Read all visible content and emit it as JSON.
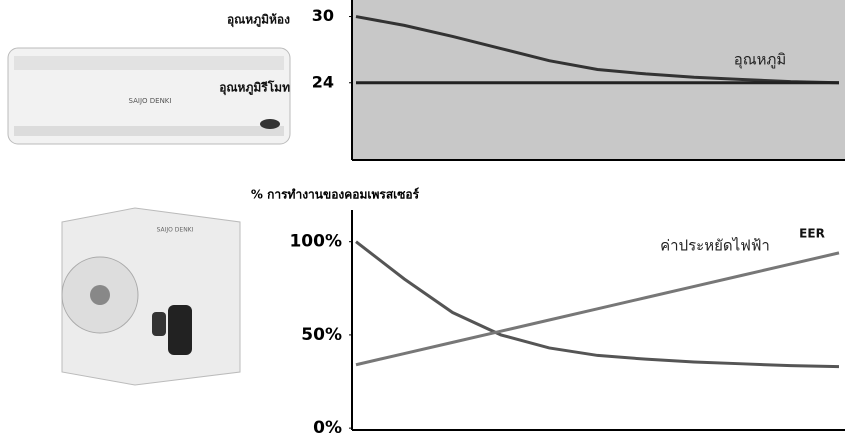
{
  "chart_data": [
    {
      "type": "line",
      "categories": [
        null,
        null,
        null,
        null,
        null,
        null,
        null,
        null,
        null,
        null,
        null
      ],
      "series": [
        {
          "name": "อุณหภูมิห้อง",
          "color": "#333333",
          "values": [
            30,
            29.2,
            28.2,
            27.1,
            26.0,
            25.2,
            24.8,
            24.5,
            24.3,
            24.1,
            24.0
          ]
        },
        {
          "name": "อุณหภูมิรีโมท",
          "color": "#222222",
          "values": [
            24,
            24,
            24,
            24,
            24,
            24,
            24,
            24,
            24,
            24,
            24
          ]
        }
      ],
      "annotation": "อุณหภูมิ",
      "ylim": [
        17,
        31.5
      ],
      "yticks": [
        30,
        24
      ],
      "background": "#c8c8c8"
    },
    {
      "type": "line",
      "title": "% การทำงานของคอมเพรสเซอร์",
      "categories": [
        null,
        null,
        null,
        null,
        null,
        null,
        null,
        null,
        null,
        null,
        null
      ],
      "series": [
        {
          "color": "#555555",
          "values": [
            100,
            80,
            62,
            50,
            43,
            39,
            37,
            35.5,
            34.5,
            33.5,
            33
          ]
        },
        {
          "name": "EER",
          "color": "#777777",
          "values": [
            34,
            40,
            46,
            52,
            58,
            64,
            70,
            76,
            82,
            88,
            94
          ]
        }
      ],
      "annotation": "ค่าประหยัดไฟฟ้า",
      "ylim": [
        -1,
        117
      ],
      "yticks": [
        {
          "value": 100,
          "label": "100%"
        },
        {
          "value": 50,
          "label": "50%"
        },
        {
          "value": 0,
          "label": "0%"
        }
      ],
      "background": "#ffffff"
    }
  ],
  "illustrations": {
    "brand": "SAIJO DENKI"
  }
}
